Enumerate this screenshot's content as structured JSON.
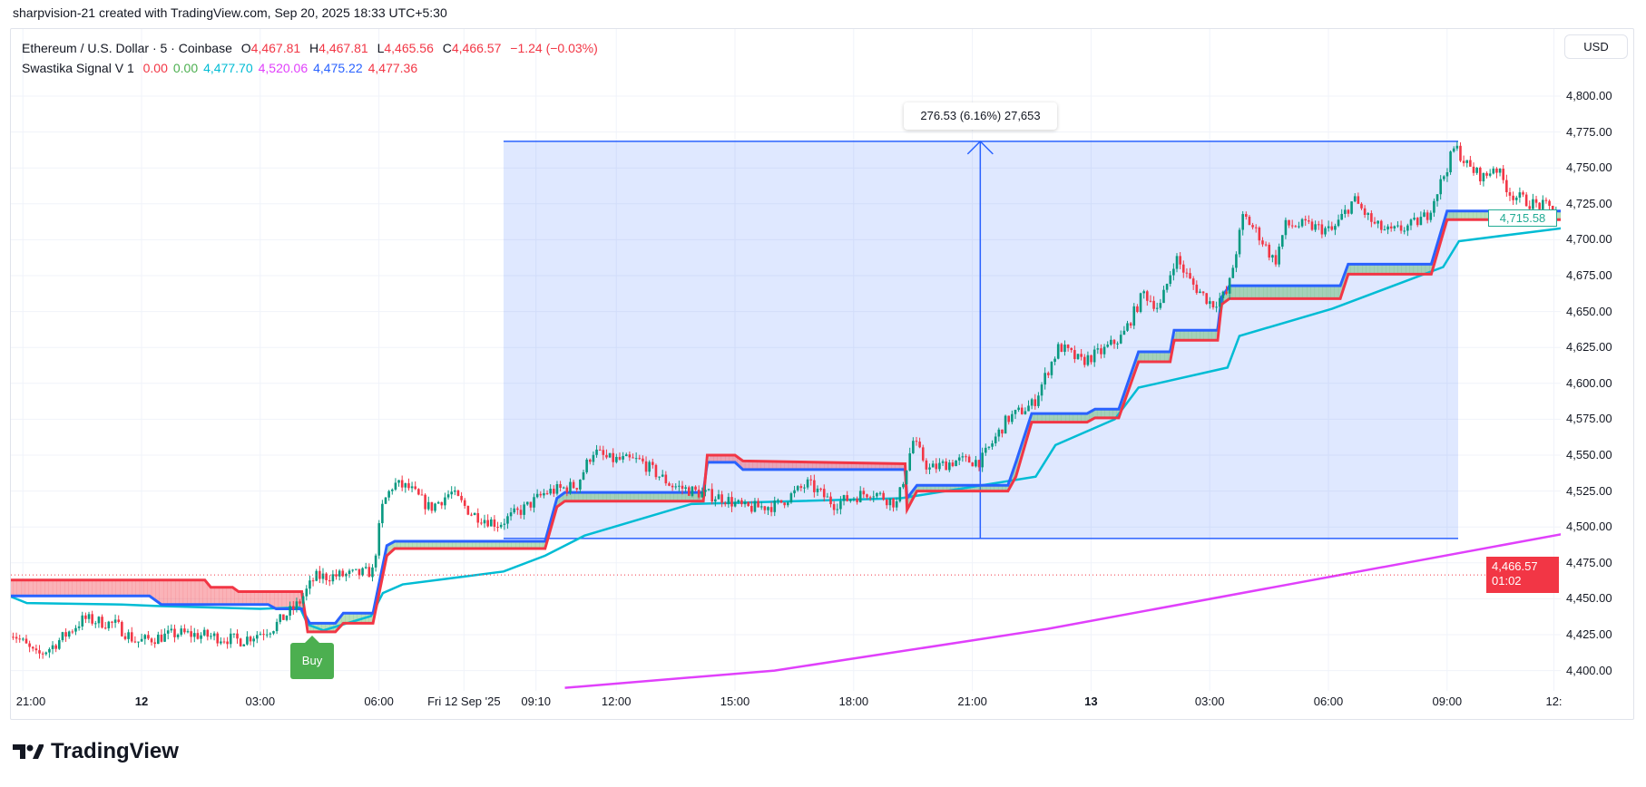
{
  "credit": "sharpvision-21 created with TradingView.com, Sep 20, 2025 18:33 UTC+5:30",
  "legend": {
    "symbol": "Ethereum / U.S. Dollar · 5 · Coinbase",
    "o_label": "O",
    "o": "4,467.81",
    "h_label": "H",
    "h": "4,467.81",
    "l_label": "L",
    "l": "4,465.56",
    "c_label": "C",
    "c": "4,466.57",
    "change": "−1.24 (−0.03%)",
    "indicator": "Swastika Signal V 1",
    "ind_values": [
      {
        "v": "0.00",
        "color": "#f23645"
      },
      {
        "v": "0.00",
        "color": "#4caf50"
      },
      {
        "v": "4,477.70",
        "color": "#00bcd4"
      },
      {
        "v": "4,520.06",
        "color": "#e040fb"
      },
      {
        "v": "4,475.22",
        "color": "#2962ff"
      },
      {
        "v": "4,477.36",
        "color": "#f23645"
      }
    ]
  },
  "currency": "USD",
  "measure_label": "276.53 (6.16%) 27,653",
  "last_price": "4,466.57",
  "countdown": "01:02",
  "green_price": "4,715.58",
  "buy_label": "Buy",
  "logo_text": "TradingView",
  "colors": {
    "up": "#089981",
    "down": "#f23645",
    "blue": "#2962ff",
    "red": "#f23645",
    "cyan": "#00bcd4",
    "magenta": "#e040fb"
  },
  "chart_data": {
    "type": "candlestick",
    "title": "Ethereum / U.S. Dollar · 5 · Coinbase",
    "ylim": [
      4385,
      4830
    ],
    "xlim_hours_from_sep12_0000": [
      -3.35,
      35.9
    ],
    "price_ticks": [
      "4,800.00",
      "4,775.00",
      "4,750.00",
      "4,725.00",
      "4,700.00",
      "4,675.00",
      "4,650.00",
      "4,625.00",
      "4,600.00",
      "4,575.00",
      "4,550.00",
      "4,525.00",
      "4,500.00",
      "4,475.00",
      "4,450.00",
      "4,425.00",
      "4,400.00"
    ],
    "price_tick_values": [
      4800,
      4775,
      4750,
      4725,
      4700,
      4675,
      4650,
      4625,
      4600,
      4575,
      4550,
      4525,
      4500,
      4475,
      4450,
      4425,
      4400
    ],
    "time_ticks": [
      {
        "label": "21:00",
        "t": -3,
        "bold": false
      },
      {
        "label": "12",
        "t": 0,
        "bold": true
      },
      {
        "label": "03:00",
        "t": 3,
        "bold": false
      },
      {
        "label": "06:00",
        "t": 6,
        "bold": false
      },
      {
        "label": "Fri 12 Sep '25",
        "t": 8.15,
        "bold": false
      },
      {
        "label": "09:10",
        "t": 9.97,
        "bold": false
      },
      {
        "label": "12:00",
        "t": 12,
        "bold": false
      },
      {
        "label": "15:00",
        "t": 15,
        "bold": false
      },
      {
        "label": "18:00",
        "t": 18,
        "bold": false
      },
      {
        "label": "21:00",
        "t": 21,
        "bold": false
      },
      {
        "label": "13",
        "t": 24,
        "bold": true
      },
      {
        "label": "03:00",
        "t": 27,
        "bold": false
      },
      {
        "label": "06:00",
        "t": 30,
        "bold": false
      },
      {
        "label": "09:00",
        "t": 33,
        "bold": false
      },
      {
        "label": "12:",
        "t": 35.7,
        "bold": false
      }
    ],
    "close_path": [
      [
        -3.32,
        4428
      ],
      [
        -2.65,
        4410
      ],
      [
        -2.25,
        4417
      ],
      [
        -1.46,
        4436
      ],
      [
        -0.66,
        4432
      ],
      [
        -0.13,
        4420
      ],
      [
        0.93,
        4426
      ],
      [
        1.72,
        4424
      ],
      [
        2.52,
        4421
      ],
      [
        3.32,
        4430
      ],
      [
        3.98,
        4447
      ],
      [
        4.38,
        4465
      ],
      [
        5.44,
        4467
      ],
      [
        5.84,
        4469
      ],
      [
        6.1,
        4516
      ],
      [
        6.37,
        4530
      ],
      [
        6.76,
        4527
      ],
      [
        7.29,
        4513
      ],
      [
        7.82,
        4524
      ],
      [
        8.36,
        4509
      ],
      [
        9.02,
        4502
      ],
      [
        9.68,
        4513
      ],
      [
        10.21,
        4524
      ],
      [
        11.0,
        4529
      ],
      [
        11.41,
        4553
      ],
      [
        11.8,
        4547
      ],
      [
        12.6,
        4546
      ],
      [
        13.4,
        4529
      ],
      [
        14.06,
        4524
      ],
      [
        14.72,
        4520
      ],
      [
        15.25,
        4513
      ],
      [
        16.05,
        4515
      ],
      [
        16.84,
        4530
      ],
      [
        17.5,
        4516
      ],
      [
        18.44,
        4525
      ],
      [
        19.1,
        4516
      ],
      [
        19.5,
        4560
      ],
      [
        19.9,
        4540
      ],
      [
        20.56,
        4546
      ],
      [
        21.22,
        4546
      ],
      [
        21.88,
        4575
      ],
      [
        22.55,
        4586
      ],
      [
        22.94,
        4611
      ],
      [
        23.2,
        4626
      ],
      [
        23.74,
        4615
      ],
      [
        24.27,
        4622
      ],
      [
        24.8,
        4633
      ],
      [
        25.33,
        4663
      ],
      [
        25.73,
        4652
      ],
      [
        26.13,
        4688
      ],
      [
        26.53,
        4670
      ],
      [
        27.06,
        4655
      ],
      [
        27.45,
        4663
      ],
      [
        27.72,
        4699
      ],
      [
        27.85,
        4717
      ],
      [
        28.25,
        4703
      ],
      [
        28.65,
        4684
      ],
      [
        28.91,
        4710
      ],
      [
        29.44,
        4710
      ],
      [
        30.1,
        4706
      ],
      [
        30.64,
        4728
      ],
      [
        31.17,
        4710
      ],
      [
        31.56,
        4705
      ],
      [
        32.1,
        4710
      ],
      [
        32.49,
        4717
      ],
      [
        32.89,
        4743
      ],
      [
        33.2,
        4765
      ],
      [
        33.55,
        4750
      ],
      [
        33.95,
        4743
      ],
      [
        34.2,
        4752
      ],
      [
        34.6,
        4732
      ],
      [
        35.15,
        4725
      ],
      [
        35.8,
        4721
      ]
    ],
    "series": [
      {
        "name": "upper-blue",
        "points": [
          [
            -3.35,
            4452
          ],
          [
            0.2,
            4452
          ],
          [
            0.5,
            4446
          ],
          [
            3.2,
            4446
          ],
          [
            3.4,
            4443
          ],
          [
            4.05,
            4443
          ],
          [
            4.25,
            4433
          ],
          [
            4.9,
            4433
          ],
          [
            5.1,
            4440
          ],
          [
            5.85,
            4440
          ],
          [
            6.2,
            4487
          ],
          [
            6.4,
            4490
          ],
          [
            10.2,
            4490
          ],
          [
            10.5,
            4520
          ],
          [
            10.7,
            4524
          ],
          [
            14.2,
            4524
          ],
          [
            14.3,
            4545
          ],
          [
            15.0,
            4545
          ],
          [
            15.2,
            4540
          ],
          [
            19.3,
            4540
          ],
          [
            19.35,
            4520
          ],
          [
            19.6,
            4529
          ],
          [
            21.9,
            4529
          ],
          [
            22.1,
            4545
          ],
          [
            22.5,
            4579
          ],
          [
            23.9,
            4579
          ],
          [
            24.1,
            4582
          ],
          [
            24.7,
            4582
          ],
          [
            25.2,
            4622
          ],
          [
            26.0,
            4622
          ],
          [
            26.1,
            4637
          ],
          [
            27.2,
            4637
          ],
          [
            27.3,
            4660
          ],
          [
            27.5,
            4668
          ],
          [
            30.3,
            4668
          ],
          [
            30.5,
            4683
          ],
          [
            32.6,
            4683
          ],
          [
            33.0,
            4720
          ],
          [
            35.9,
            4720
          ]
        ]
      },
      {
        "name": "lower-red",
        "points": [
          [
            -3.35,
            4463
          ],
          [
            0.2,
            4463
          ],
          [
            1.6,
            4463
          ],
          [
            1.75,
            4458
          ],
          [
            2.3,
            4458
          ],
          [
            2.45,
            4455
          ],
          [
            4.05,
            4455
          ],
          [
            4.2,
            4427
          ],
          [
            4.9,
            4427
          ],
          [
            5.1,
            4433
          ],
          [
            5.85,
            4433
          ],
          [
            6.2,
            4480
          ],
          [
            6.4,
            4485
          ],
          [
            10.2,
            4485
          ],
          [
            10.5,
            4514
          ],
          [
            10.7,
            4518
          ],
          [
            14.2,
            4518
          ],
          [
            14.3,
            4550
          ],
          [
            15.0,
            4550
          ],
          [
            15.2,
            4546
          ],
          [
            19.3,
            4544
          ],
          [
            19.35,
            4512
          ],
          [
            19.6,
            4525
          ],
          [
            21.9,
            4525
          ],
          [
            22.1,
            4535
          ],
          [
            22.5,
            4573
          ],
          [
            23.9,
            4573
          ],
          [
            24.1,
            4576
          ],
          [
            24.7,
            4576
          ],
          [
            25.2,
            4615
          ],
          [
            26.0,
            4615
          ],
          [
            26.1,
            4630
          ],
          [
            27.2,
            4630
          ],
          [
            27.3,
            4655
          ],
          [
            27.5,
            4659
          ],
          [
            30.3,
            4659
          ],
          [
            30.5,
            4676
          ],
          [
            32.6,
            4676
          ],
          [
            33.0,
            4714
          ],
          [
            35.9,
            4714
          ]
        ]
      },
      {
        "name": "cyan",
        "points": [
          [
            -3.35,
            4452
          ],
          [
            -2.9,
            4447
          ],
          [
            -0.5,
            4446
          ],
          [
            0.4,
            4445
          ],
          [
            3.0,
            4443
          ],
          [
            4.0,
            4444
          ],
          [
            4.2,
            4432
          ],
          [
            4.6,
            4428
          ],
          [
            5.8,
            4438
          ],
          [
            6.1,
            4454
          ],
          [
            6.6,
            4460
          ],
          [
            9.15,
            4469
          ],
          [
            10.2,
            4480
          ],
          [
            11.2,
            4494
          ],
          [
            13.9,
            4516
          ],
          [
            19.2,
            4520
          ],
          [
            22.6,
            4535
          ],
          [
            23.1,
            4557
          ],
          [
            24.6,
            4575
          ],
          [
            25.2,
            4597
          ],
          [
            27.45,
            4611
          ],
          [
            27.75,
            4633
          ],
          [
            30.1,
            4652
          ],
          [
            32.9,
            4681
          ],
          [
            33.3,
            4699
          ],
          [
            35.9,
            4708
          ]
        ]
      },
      {
        "name": "magenta",
        "points": [
          [
            10.7,
            4388
          ],
          [
            16.0,
            4400
          ],
          [
            22.9,
            4429
          ],
          [
            29.0,
            4460
          ],
          [
            35.9,
            4495
          ]
        ]
      }
    ],
    "measure": {
      "t_start": 9.15,
      "t_end": 33.28,
      "t_arrow": 21.2,
      "p_low": 4492,
      "p_high": 4768.5
    },
    "buy_signal_t": 4.1,
    "last_price_value": 4466.57,
    "green_price_value": 4715.58
  }
}
